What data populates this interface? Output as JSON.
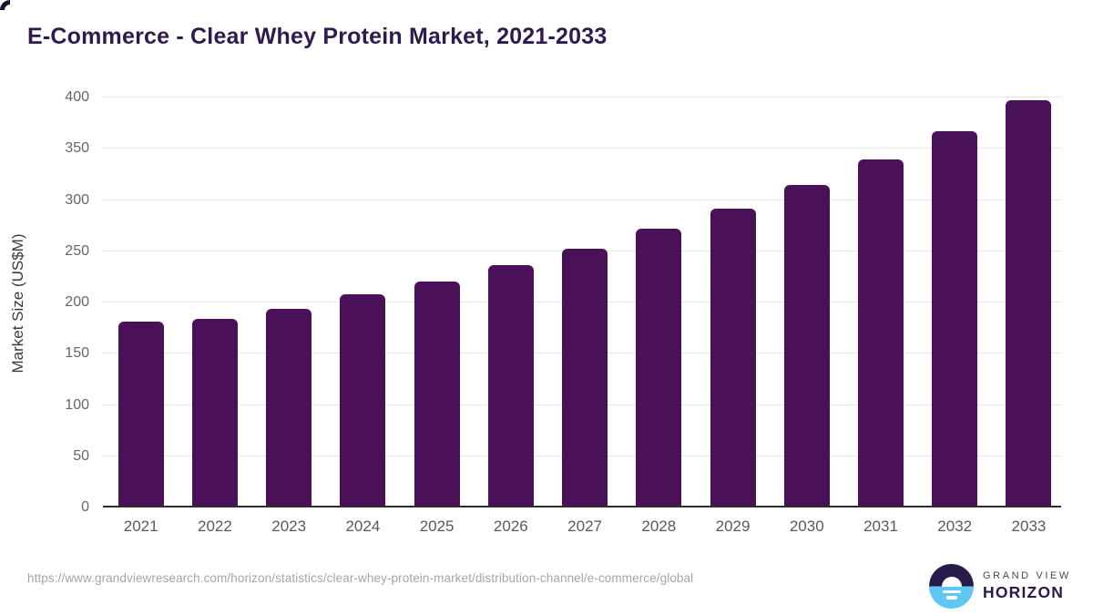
{
  "page": {
    "title": "E-Commerce - Clear Whey Protein Market, 2021-2033"
  },
  "chart_data": {
    "type": "bar",
    "title": "E-Commerce - Clear Whey Protein Market, 2021-2033",
    "categories": [
      "2021",
      "2022",
      "2023",
      "2024",
      "2025",
      "2026",
      "2027",
      "2028",
      "2029",
      "2030",
      "2031",
      "2032",
      "2033"
    ],
    "values": [
      180,
      182,
      192,
      206,
      219,
      235,
      251,
      270,
      290,
      313,
      338,
      365,
      396
    ],
    "xlabel": "",
    "ylabel": "Market Size (US$M)",
    "ylim": [
      0,
      400
    ],
    "yticks": [
      0,
      50,
      100,
      150,
      200,
      250,
      300,
      350,
      400
    ],
    "grid": "horizontal",
    "legend": "none",
    "bar_color": "#4a1158"
  },
  "footer": {
    "source_url": "https://www.grandviewresearch.com/horizon/statistics/clear-whey-protein-market/distribution-channel/e-commerce/global"
  },
  "logo": {
    "line1": "GRAND VIEW",
    "line2": "HORIZON"
  },
  "colors": {
    "title": "#2e1a4e",
    "bar": "#4a1158",
    "gridline": "#e7e7e7",
    "tick_label": "#666666",
    "logo_dark": "#2a1a4a",
    "logo_blue": "#5ec8f2"
  }
}
